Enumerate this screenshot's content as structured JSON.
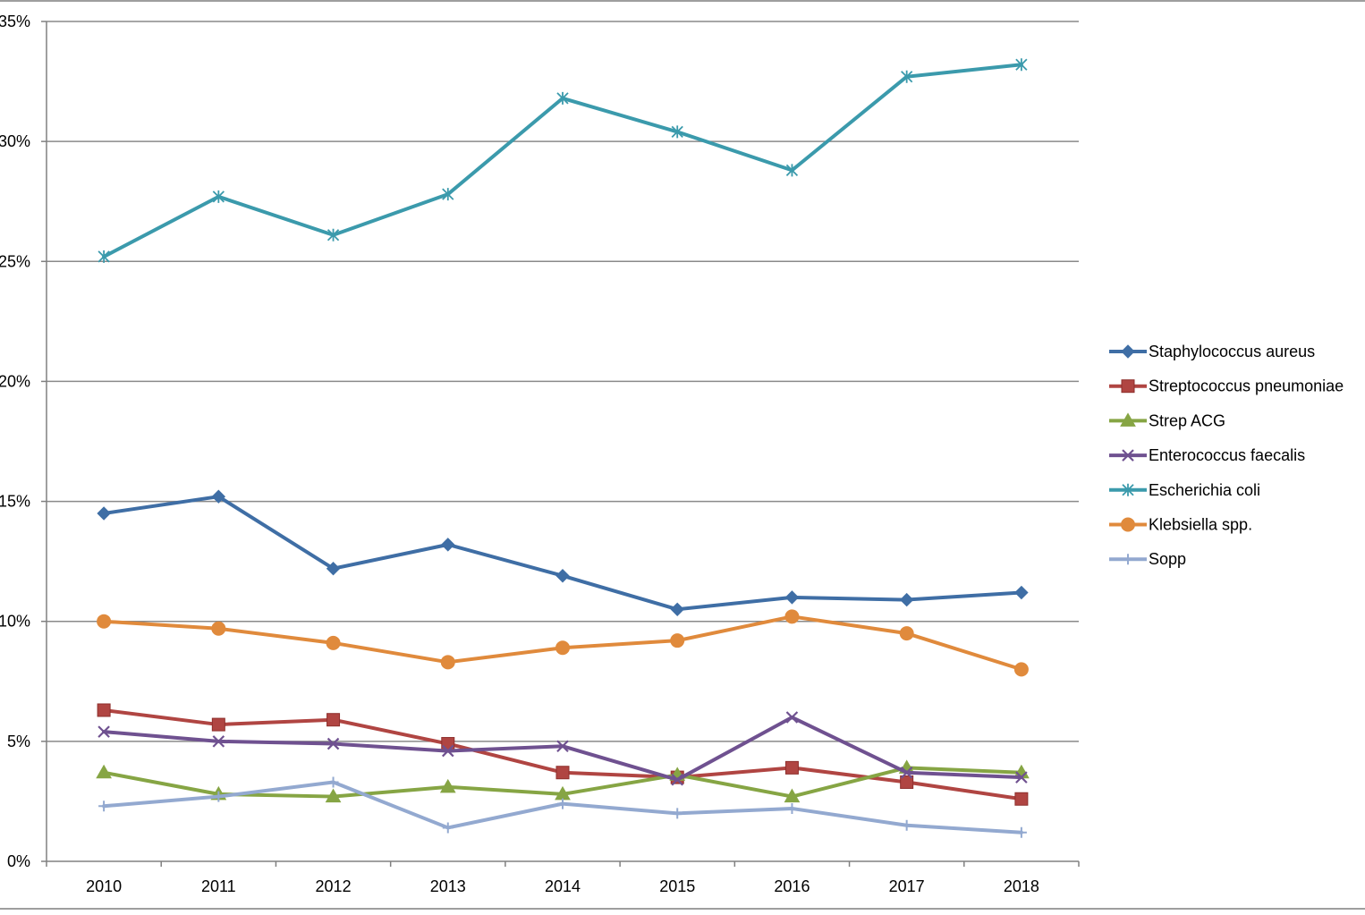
{
  "chart_data": {
    "type": "line",
    "title": "",
    "xlabel": "",
    "ylabel": "",
    "x": [
      "2010",
      "2011",
      "2012",
      "2013",
      "2014",
      "2015",
      "2016",
      "2017",
      "2018"
    ],
    "ylim": [
      0,
      35
    ],
    "yticks": [
      0,
      5,
      10,
      15,
      20,
      25,
      30,
      35
    ],
    "ytick_labels": [
      "0%",
      "5%",
      "10%",
      "15%",
      "20%",
      "25%",
      "30%",
      "35%"
    ],
    "grid": true,
    "legend_position": "right",
    "series": [
      {
        "name": "Staphylococcus aureus",
        "color": "#3f6ea5",
        "marker": "diamond",
        "values": [
          14.5,
          15.2,
          12.2,
          13.2,
          11.9,
          10.5,
          11.0,
          10.9,
          11.2
        ]
      },
      {
        "name": "Streptococcus pneumoniae",
        "color": "#b04542",
        "marker": "square",
        "values": [
          6.3,
          5.7,
          5.9,
          4.9,
          3.7,
          3.5,
          3.9,
          3.3,
          2.6
        ]
      },
      {
        "name": "Strep ACG",
        "color": "#86a544",
        "marker": "triangle",
        "values": [
          3.7,
          2.8,
          2.7,
          3.1,
          2.8,
          3.6,
          2.7,
          3.9,
          3.7
        ]
      },
      {
        "name": "Enterococcus faecalis",
        "color": "#6f5190",
        "marker": "x",
        "values": [
          5.4,
          5.0,
          4.9,
          4.6,
          4.8,
          3.4,
          6.0,
          3.7,
          3.5
        ]
      },
      {
        "name": "Escherichia coli",
        "color": "#3b9aac",
        "marker": "asterisk",
        "values": [
          25.2,
          27.7,
          26.1,
          27.8,
          31.8,
          30.4,
          28.8,
          32.7,
          33.2
        ]
      },
      {
        "name": "Klebsiella spp.",
        "color": "#e08a3c",
        "marker": "circle",
        "values": [
          10.0,
          9.7,
          9.1,
          8.3,
          8.9,
          9.2,
          10.2,
          9.5,
          8.0
        ]
      },
      {
        "name": "Sopp",
        "color": "#93a9d0",
        "marker": "plus",
        "values": [
          2.3,
          2.7,
          3.3,
          1.4,
          2.4,
          2.0,
          2.2,
          1.5,
          1.2
        ]
      }
    ]
  }
}
